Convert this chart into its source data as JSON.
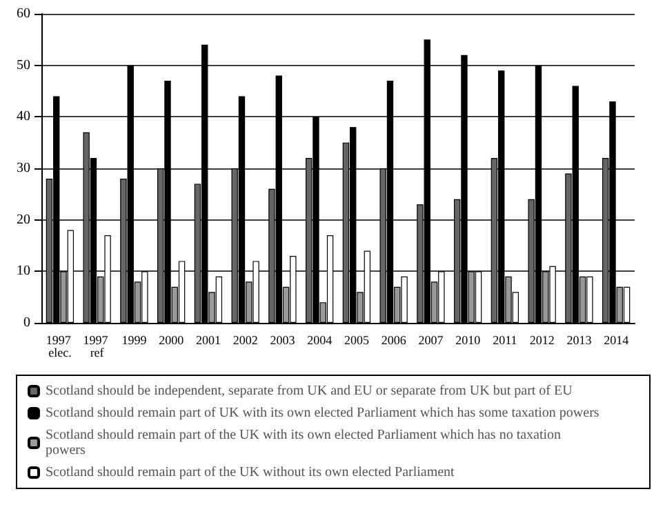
{
  "chart_data": {
    "type": "bar",
    "categories": [
      "1997 elec.",
      "1997 ref",
      "1999",
      "2000",
      "2001",
      "2002",
      "2003",
      "2004",
      "2005",
      "2006",
      "2007",
      "2010",
      "2011",
      "2012",
      "2013",
      "2014"
    ],
    "series": [
      {
        "name": "Scotland should be independent, separate from UK and EU or separate from UK but part of EU",
        "color": "#666666",
        "values": [
          28,
          37,
          28,
          30,
          27,
          30,
          26,
          32,
          35,
          30,
          23,
          24,
          32,
          24,
          29,
          32
        ]
      },
      {
        "name": "Scotland should remain part of UK with its own elected Parliament which has some taxation powers",
        "color": "#000000",
        "values": [
          44,
          32,
          50,
          47,
          54,
          44,
          48,
          40,
          38,
          47,
          55,
          52,
          49,
          50,
          46,
          43
        ]
      },
      {
        "name": "Scotland should remain part of the UK with its own elected Parliament which has no taxation powers",
        "color": "#999999",
        "values": [
          10,
          9,
          8,
          7,
          6,
          8,
          7,
          4,
          6,
          7,
          8,
          10,
          9,
          10,
          9,
          7
        ]
      },
      {
        "name": "Scotland should remain part of the UK without its own elected Parliament",
        "color": "#ffffff",
        "values": [
          18,
          17,
          10,
          12,
          9,
          12,
          13,
          17,
          14,
          9,
          10,
          10,
          6,
          11,
          9,
          7
        ]
      }
    ],
    "ylim": [
      0,
      60
    ],
    "yticks": [
      0,
      10,
      20,
      30,
      40,
      50,
      60
    ],
    "grid": "y",
    "legend": "bottom"
  }
}
